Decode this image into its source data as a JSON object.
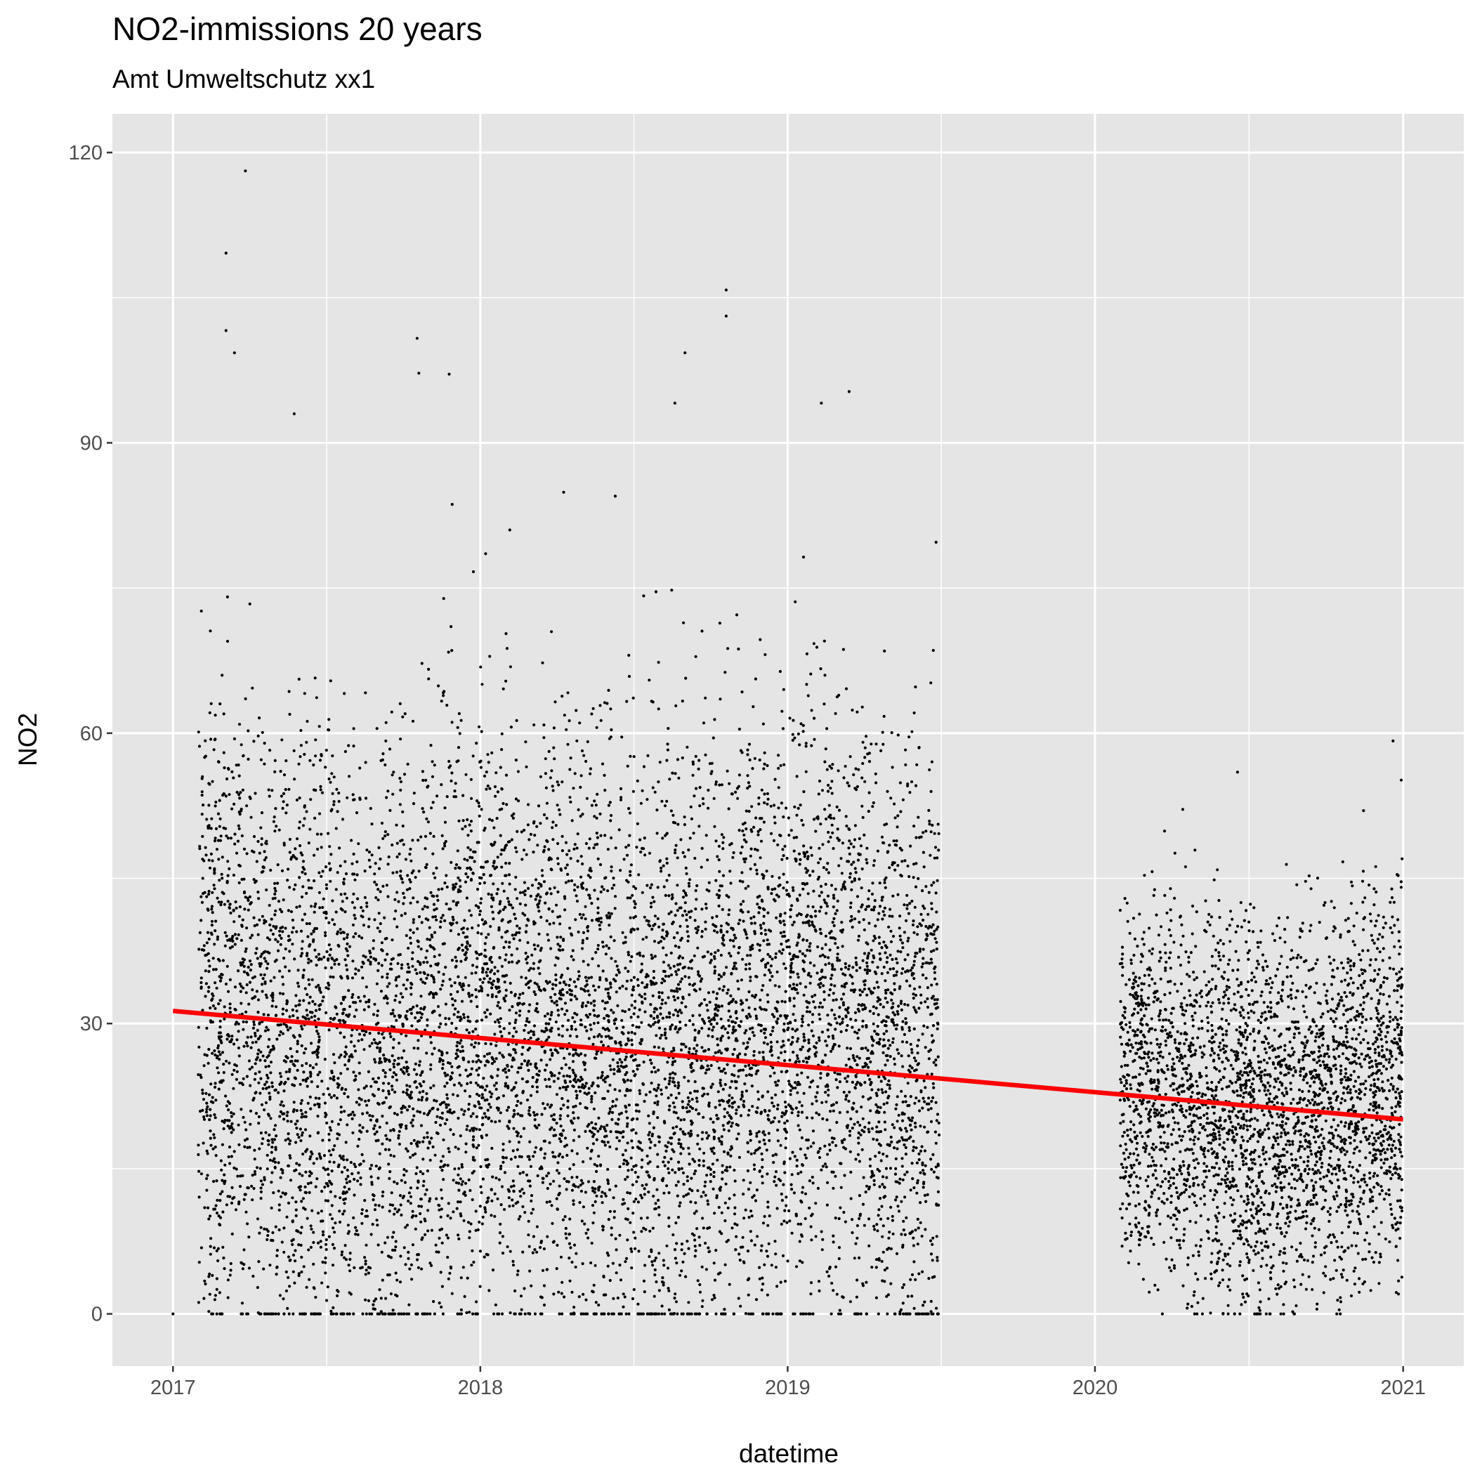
{
  "chart_data": {
    "type": "scatter",
    "title": "NO2-immissions 20 years",
    "subtitle": "Amt Umweltschutz xx1",
    "xlabel": "datetime",
    "ylabel": "NO2",
    "x_ticks": [
      "2017",
      "2018",
      "2019",
      "2020",
      "2021"
    ],
    "y_ticks": [
      "0",
      "30",
      "60",
      "90",
      "120"
    ],
    "xlim": [
      "2016-10-21",
      "2021-03-14"
    ],
    "ylim": [
      -5.4,
      124
    ],
    "grid": true,
    "background": "#e5e5e5",
    "point_color": "#000000",
    "trend_color": "#ff0000",
    "data_gap": [
      "2019-07-01",
      "2020-01-31"
    ],
    "series": [
      {
        "type": "scatter",
        "periods": [
          {
            "start": "2017-01-31",
            "end": "2019-06-30",
            "typical_range": [
              2,
              55
            ]
          },
          {
            "start": "2020-01-31",
            "end": "2020-12-31",
            "typical_range": [
              5,
              38
            ]
          }
        ],
        "notable_points": [
          {
            "x": "2017-01-01",
            "y": 0
          },
          {
            "x": "2017-03-05",
            "y": 109.6
          },
          {
            "x": "2017-03-05",
            "y": 101.6
          },
          {
            "x": "2017-03-15",
            "y": 99.3
          },
          {
            "x": "2017-03-28",
            "y": 118.1
          },
          {
            "x": "2017-05-25",
            "y": 93.0
          },
          {
            "x": "2017-10-18",
            "y": 100.8
          },
          {
            "x": "2017-10-20",
            "y": 97.2
          },
          {
            "x": "2017-11-25",
            "y": 97.1
          },
          {
            "x": "2018-02-05",
            "y": 81.0
          },
          {
            "x": "2018-04-10",
            "y": 84.9
          },
          {
            "x": "2018-08-20",
            "y": 94.1
          },
          {
            "x": "2018-09-01",
            "y": 99.3
          },
          {
            "x": "2018-10-20",
            "y": 105.8
          },
          {
            "x": "2018-10-20",
            "y": 103.1
          },
          {
            "x": "2019-02-10",
            "y": 94.1
          },
          {
            "x": "2019-03-15",
            "y": 95.3
          },
          {
            "x": "2019-06-20",
            "y": 65.2
          },
          {
            "x": "2020-01-31",
            "y": 41.7
          },
          {
            "x": "2020-04-05",
            "y": 47.6
          },
          {
            "x": "2020-11-15",
            "y": 52.0
          },
          {
            "x": "2020-12-20",
            "y": 59.2
          }
        ]
      },
      {
        "type": "line",
        "x": [
          "2017-01-01",
          "2021-01-01"
        ],
        "y": [
          31.3,
          20.1
        ]
      }
    ]
  }
}
